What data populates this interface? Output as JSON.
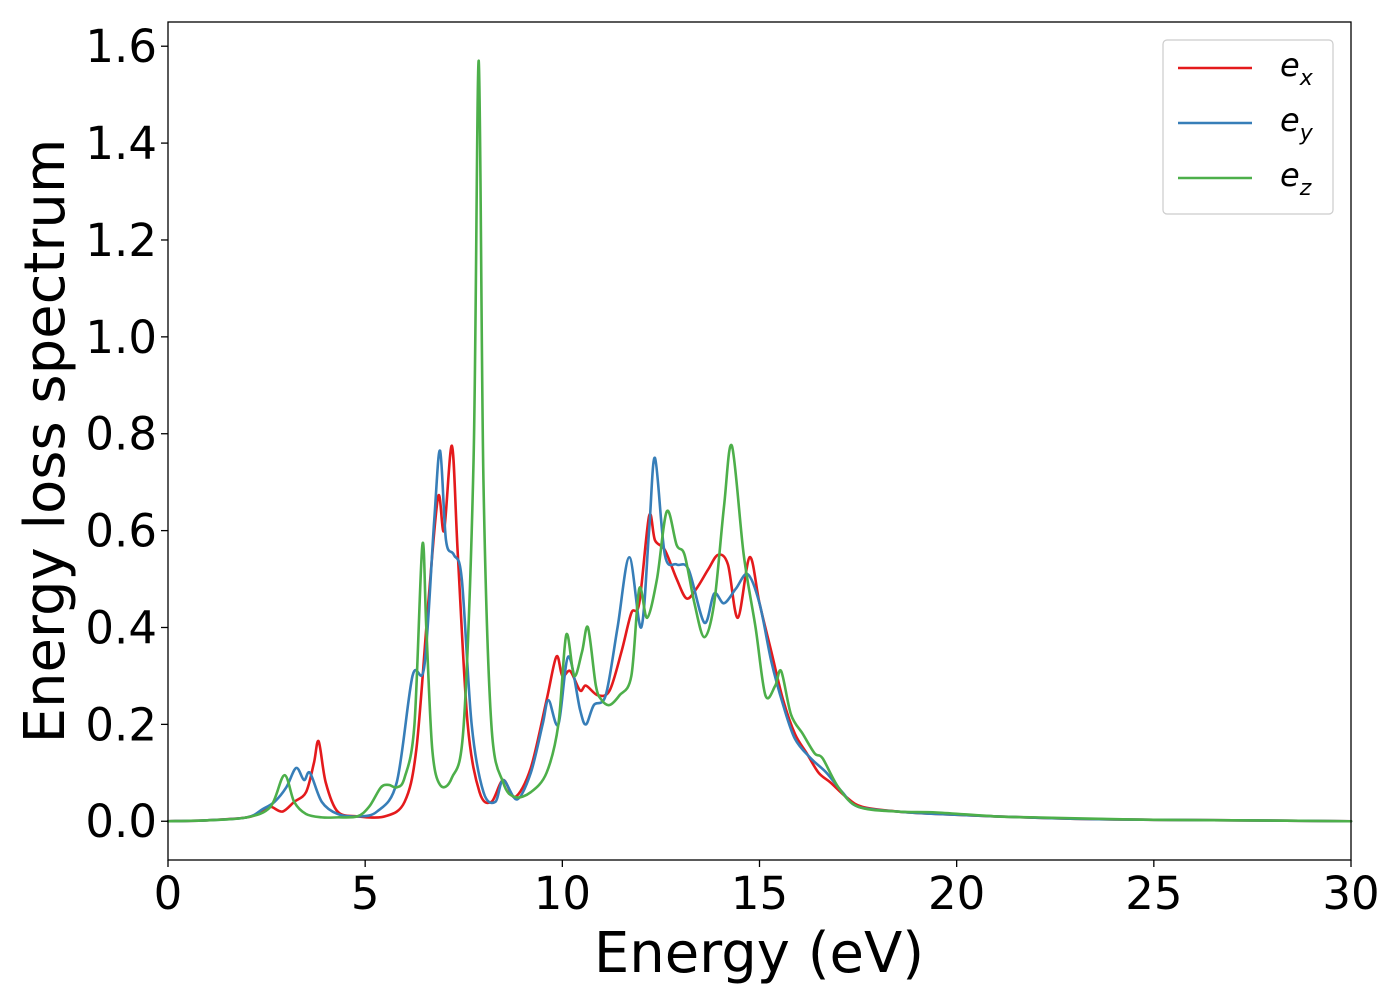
{
  "chart_data": {
    "type": "line",
    "title": "",
    "xlabel": "Energy (eV)",
    "ylabel": "Energy loss spectrum",
    "xlim": [
      0,
      30
    ],
    "ylim": [
      -0.08,
      1.65
    ],
    "xticks": [
      0,
      5,
      10,
      15,
      20,
      25,
      30
    ],
    "yticks": [
      0.0,
      0.2,
      0.4,
      0.6,
      0.8,
      1.0,
      1.2,
      1.4,
      1.6
    ],
    "grid": false,
    "legend_position": "top-right",
    "series": [
      {
        "name": "e_x",
        "label_base": "e",
        "label_sub": "x",
        "color": "#e41a1c",
        "x": [
          0,
          1,
          2,
          2.4,
          2.6,
          2.9,
          3.2,
          3.5,
          3.7,
          3.82,
          4.0,
          4.3,
          4.8,
          5.5,
          6.0,
          6.3,
          6.6,
          6.85,
          7.0,
          7.2,
          7.35,
          7.6,
          7.9,
          8.2,
          8.5,
          8.8,
          9.2,
          9.6,
          9.85,
          10.0,
          10.2,
          10.45,
          10.6,
          10.9,
          11.2,
          11.5,
          11.75,
          11.95,
          12.2,
          12.35,
          12.6,
          12.9,
          13.15,
          13.4,
          13.7,
          13.95,
          14.2,
          14.45,
          14.75,
          15.0,
          15.3,
          15.6,
          15.9,
          16.2,
          16.5,
          16.8,
          17.2,
          17.6,
          18.5,
          19.5,
          21,
          23,
          25,
          27,
          30
        ],
        "y": [
          0.0,
          0.002,
          0.008,
          0.02,
          0.03,
          0.02,
          0.04,
          0.06,
          0.12,
          0.165,
          0.08,
          0.02,
          0.01,
          0.01,
          0.04,
          0.15,
          0.45,
          0.67,
          0.6,
          0.775,
          0.55,
          0.2,
          0.06,
          0.04,
          0.085,
          0.05,
          0.11,
          0.25,
          0.34,
          0.3,
          0.31,
          0.27,
          0.28,
          0.26,
          0.27,
          0.35,
          0.43,
          0.45,
          0.63,
          0.58,
          0.56,
          0.5,
          0.46,
          0.48,
          0.52,
          0.55,
          0.53,
          0.42,
          0.545,
          0.45,
          0.35,
          0.25,
          0.18,
          0.14,
          0.1,
          0.08,
          0.05,
          0.03,
          0.02,
          0.015,
          0.01,
          0.005,
          0.003,
          0.002,
          0.0
        ]
      },
      {
        "name": "e_y",
        "label_base": "e",
        "label_sub": "y",
        "color": "#377eb8",
        "x": [
          0,
          1,
          2,
          2.4,
          2.7,
          3.0,
          3.25,
          3.45,
          3.6,
          3.9,
          4.3,
          4.8,
          5.3,
          5.8,
          6.2,
          6.5,
          6.75,
          6.9,
          7.05,
          7.25,
          7.45,
          7.7,
          8.0,
          8.3,
          8.5,
          8.85,
          9.2,
          9.5,
          9.65,
          9.9,
          10.15,
          10.45,
          10.6,
          10.8,
          11.1,
          11.4,
          11.7,
          12.0,
          12.2,
          12.35,
          12.6,
          12.9,
          13.2,
          13.6,
          13.85,
          14.1,
          14.4,
          14.7,
          15.0,
          15.3,
          15.6,
          15.9,
          16.3,
          16.7,
          17.1,
          17.5,
          18.5,
          19.5,
          21,
          23,
          25,
          27,
          30
        ],
        "y": [
          0.0,
          0.002,
          0.008,
          0.025,
          0.04,
          0.07,
          0.11,
          0.085,
          0.1,
          0.04,
          0.015,
          0.01,
          0.02,
          0.08,
          0.3,
          0.32,
          0.62,
          0.765,
          0.58,
          0.55,
          0.5,
          0.2,
          0.06,
          0.04,
          0.085,
          0.045,
          0.1,
          0.2,
          0.25,
          0.2,
          0.34,
          0.23,
          0.2,
          0.24,
          0.26,
          0.4,
          0.545,
          0.4,
          0.6,
          0.75,
          0.55,
          0.53,
          0.52,
          0.41,
          0.47,
          0.45,
          0.48,
          0.51,
          0.45,
          0.33,
          0.24,
          0.17,
          0.13,
          0.1,
          0.06,
          0.03,
          0.02,
          0.015,
          0.01,
          0.005,
          0.003,
          0.002,
          0.0
        ]
      },
      {
        "name": "e_z",
        "label_base": "e",
        "label_sub": "z",
        "color": "#4daf4a",
        "x": [
          0,
          1,
          2,
          2.6,
          2.95,
          3.2,
          3.5,
          3.9,
          4.3,
          4.8,
          5.1,
          5.4,
          5.6,
          5.8,
          6.0,
          6.25,
          6.45,
          6.55,
          6.7,
          6.9,
          7.2,
          7.5,
          7.75,
          7.88,
          8.0,
          8.2,
          8.5,
          8.8,
          9.2,
          9.6,
          9.9,
          10.1,
          10.3,
          10.5,
          10.65,
          10.85,
          11.0,
          11.2,
          11.45,
          11.75,
          11.95,
          12.15,
          12.4,
          12.65,
          12.9,
          13.1,
          13.35,
          13.6,
          13.85,
          14.1,
          14.3,
          14.6,
          14.9,
          15.15,
          15.4,
          15.55,
          15.8,
          16.1,
          16.4,
          16.6,
          17.0,
          17.5,
          18.5,
          19.5,
          21,
          22,
          23,
          25,
          27,
          30
        ],
        "y": [
          0.0,
          0.002,
          0.008,
          0.03,
          0.095,
          0.04,
          0.015,
          0.008,
          0.008,
          0.01,
          0.03,
          0.07,
          0.075,
          0.07,
          0.09,
          0.2,
          0.57,
          0.4,
          0.15,
          0.075,
          0.09,
          0.2,
          0.75,
          1.57,
          0.7,
          0.2,
          0.08,
          0.05,
          0.06,
          0.1,
          0.2,
          0.385,
          0.3,
          0.35,
          0.4,
          0.28,
          0.25,
          0.24,
          0.26,
          0.3,
          0.48,
          0.42,
          0.5,
          0.64,
          0.57,
          0.55,
          0.45,
          0.38,
          0.45,
          0.65,
          0.775,
          0.55,
          0.4,
          0.26,
          0.28,
          0.31,
          0.22,
          0.18,
          0.14,
          0.13,
          0.07,
          0.03,
          0.02,
          0.018,
          0.01,
          0.008,
          0.006,
          0.003,
          0.002,
          0.0
        ]
      }
    ]
  }
}
